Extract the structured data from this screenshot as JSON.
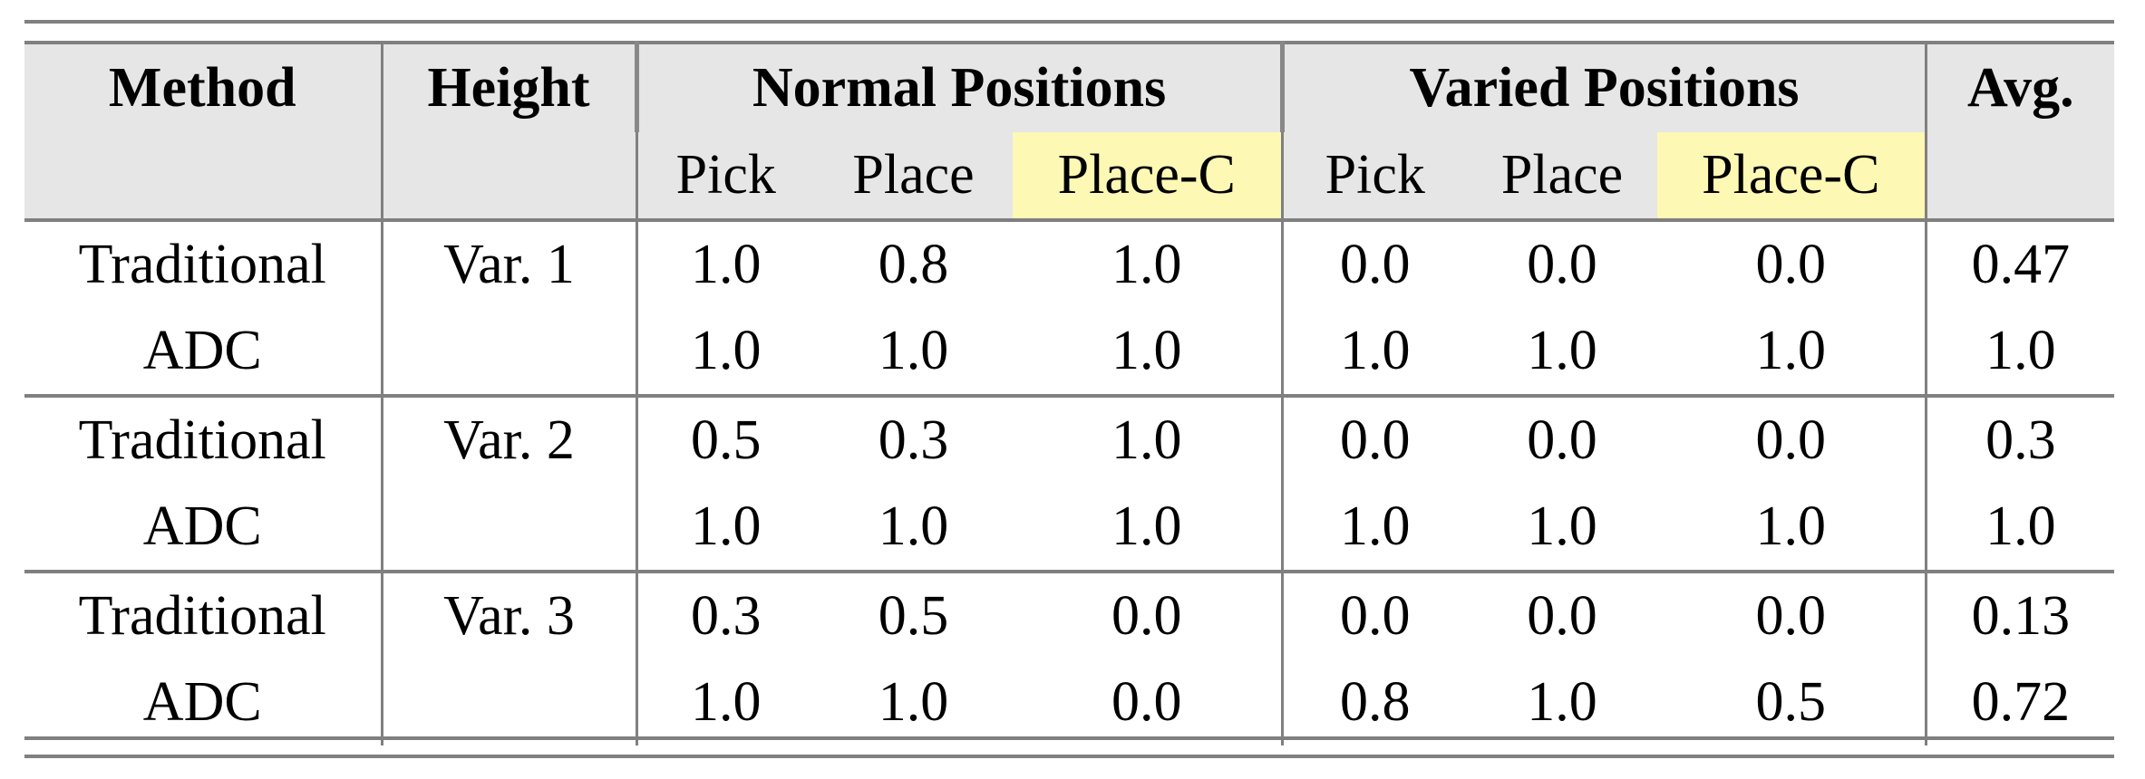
{
  "table": {
    "header_top": [
      "Method",
      "Height",
      "Normal Positions",
      "Varied Positions",
      "Avg."
    ],
    "header_sub": [
      "Pick",
      "Place",
      "Place-C",
      "Pick",
      "Place",
      "Place-C"
    ],
    "highlight_color": "#fdf8b4",
    "header_bg": "#e6e6e6",
    "groups": [
      {
        "height": "Var. 1",
        "rows": [
          {
            "method": "Traditional",
            "values": [
              "1.0",
              "0.8",
              "1.0",
              "0.0",
              "0.0",
              "0.0"
            ],
            "avg": "0.47"
          },
          {
            "method": "ADC",
            "values": [
              "1.0",
              "1.0",
              "1.0",
              "1.0",
              "1.0",
              "1.0"
            ],
            "avg": "1.0"
          }
        ]
      },
      {
        "height": "Var. 2",
        "rows": [
          {
            "method": "Traditional",
            "values": [
              "0.5",
              "0.3",
              "1.0",
              "0.0",
              "0.0",
              "0.0"
            ],
            "avg": "0.3"
          },
          {
            "method": "ADC",
            "values": [
              "1.0",
              "1.0",
              "1.0",
              "1.0",
              "1.0",
              "1.0"
            ],
            "avg": "1.0"
          }
        ]
      },
      {
        "height": "Var. 3",
        "rows": [
          {
            "method": "Traditional",
            "values": [
              "0.3",
              "0.5",
              "0.0",
              "0.0",
              "0.0",
              "0.0"
            ],
            "avg": "0.13"
          },
          {
            "method": "ADC",
            "values": [
              "1.0",
              "1.0",
              "0.0",
              "0.8",
              "1.0",
              "0.5"
            ],
            "avg": "0.72"
          }
        ]
      }
    ]
  }
}
